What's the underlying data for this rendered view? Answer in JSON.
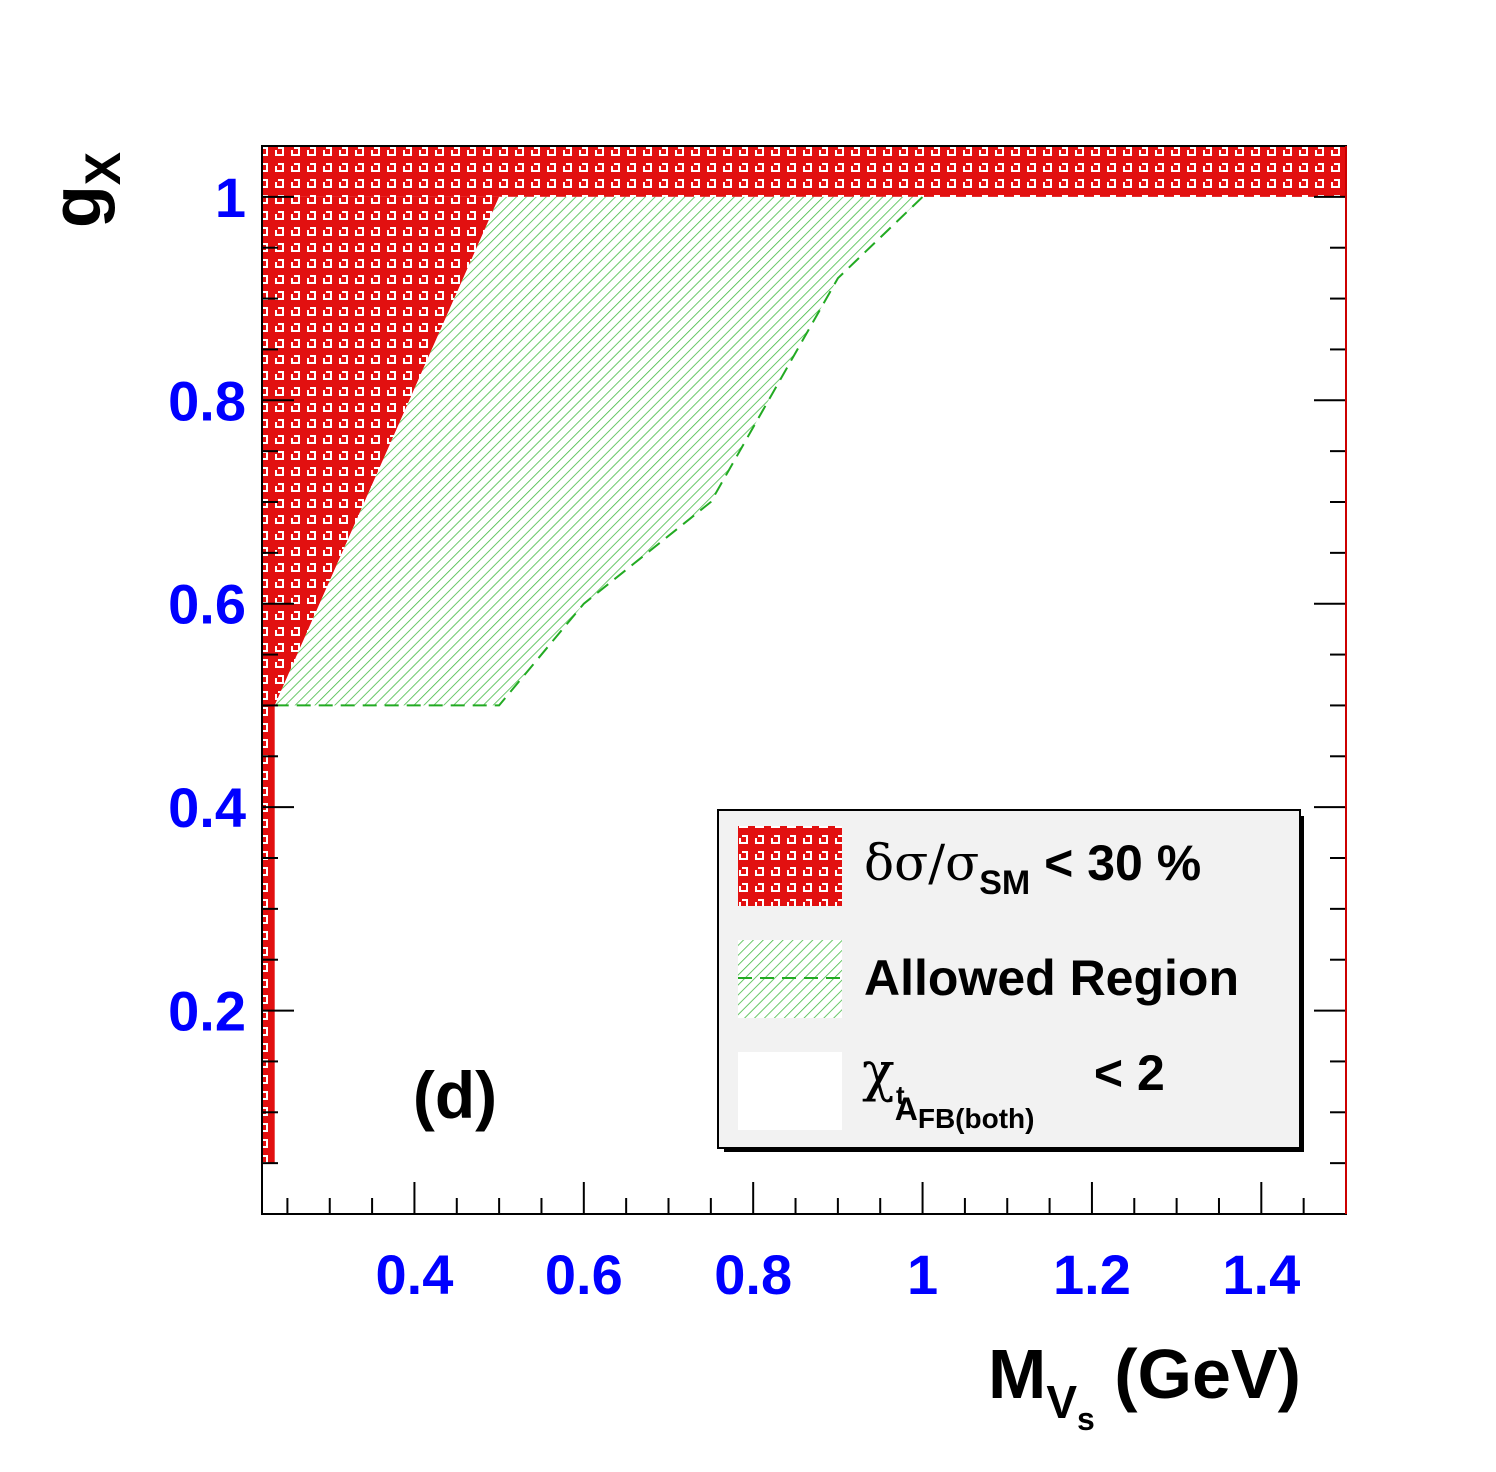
{
  "chart_data": {
    "type": "area",
    "xlabel": {
      "main": "M",
      "sub": "V",
      "subsub": "s",
      "unit": " (GeV)"
    },
    "ylabel": {
      "main": "g",
      "sub": "X"
    },
    "xlim": [
      0.22,
      1.5
    ],
    "ylim": [
      0.0,
      1.05
    ],
    "x_ticks": [
      {
        "value": 0.4,
        "label": "0.4"
      },
      {
        "value": 0.6,
        "label": "0.6"
      },
      {
        "value": 0.8,
        "label": "0.8"
      },
      {
        "value": 1.0,
        "label": "1"
      },
      {
        "value": 1.2,
        "label": "1.2"
      },
      {
        "value": 1.4,
        "label": "1.4"
      }
    ],
    "y_ticks": [
      {
        "value": 0.2,
        "label": "0.2"
      },
      {
        "value": 0.4,
        "label": "0.4"
      },
      {
        "value": 0.6,
        "label": "0.6"
      },
      {
        "value": 0.8,
        "label": "0.8"
      },
      {
        "value": 1.0,
        "label": "1"
      }
    ],
    "panel_label": "(d)",
    "series": [
      {
        "name": "δσ/σSM < 30 %",
        "style": "red-crosshatch",
        "color": "#ff0000",
        "polygons": [
          [
            [
              0.22,
              1.0
            ],
            [
              1.5,
              1.0
            ],
            [
              1.5,
              1.05
            ],
            [
              0.22,
              1.05
            ]
          ],
          [
            [
              0.22,
              0.5
            ],
            [
              0.235,
              0.5
            ],
            [
              0.5,
              1.0
            ],
            [
              0.22,
              1.0
            ]
          ],
          [
            [
              0.22,
              0.05
            ],
            [
              0.235,
              0.05
            ],
            [
              0.235,
              0.5
            ],
            [
              0.22,
              0.5
            ]
          ]
        ]
      },
      {
        "name": "Allowed Region",
        "style": "green-hatch-dashed",
        "color": "#00aa00",
        "polygon": [
          [
            0.235,
            0.5
          ],
          [
            0.5,
            0.5
          ],
          [
            0.6,
            0.6
          ],
          [
            0.75,
            0.7
          ],
          [
            0.9,
            0.92
          ],
          [
            1.0,
            1.0
          ],
          [
            0.5,
            1.0
          ]
        ]
      },
      {
        "name": "χAFB(both) < 2",
        "style": "white-fill",
        "color": "#ffffff"
      }
    ],
    "legend": {
      "position": "bottom-right",
      "background": "#f2f2f2",
      "entries": [
        {
          "greek": "δσ/σ",
          "sub": "SM",
          "rest": " < 30 %"
        },
        {
          "text": "Allowed Region"
        },
        {
          "greek": "χ",
          "sub": "A",
          "subsub": "FB(both)",
          "sup": "t",
          "rest": " < 2"
        }
      ]
    }
  }
}
